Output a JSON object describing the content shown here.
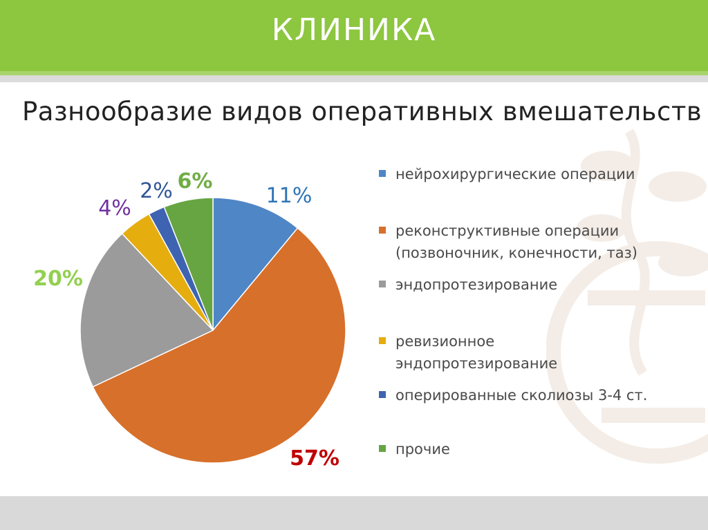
{
  "header": {
    "title": "КЛИНИКА"
  },
  "chart_data": {
    "type": "pie",
    "title": "Разнообразие видов оперативных вмешательств",
    "legend_position": "right",
    "slices": [
      {
        "label": "нейрохирургические операции",
        "value": 11,
        "display": "11%",
        "color": "#4f86c6",
        "label_color": "#2e75b6"
      },
      {
        "label": "реконструктивные операции\n(позвоночник, конечности, таз)",
        "value": 57,
        "display": "57%",
        "color": "#d7702b",
        "label_color": "#c00000"
      },
      {
        "label": "эндопротезирование",
        "value": 20,
        "display": "20%",
        "color": "#9b9b9b",
        "label_color": "#92d050"
      },
      {
        "label": "ревизионное\nэндопротезирование",
        "value": 4,
        "display": "4%",
        "color": "#e6ad0e",
        "label_color": "#7030a0"
      },
      {
        "label": "оперированные сколиозы 3-4 ст.",
        "value": 2,
        "display": "2%",
        "color": "#3e64b1",
        "label_color": "#2f5597"
      },
      {
        "label": "прочие",
        "value": 6,
        "display": "6%",
        "color": "#67a543",
        "label_color": "#70ad47"
      }
    ]
  }
}
